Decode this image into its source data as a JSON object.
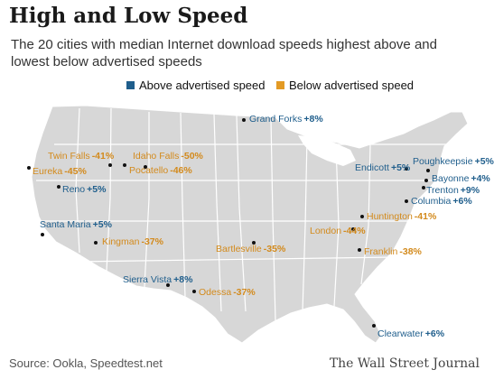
{
  "title": "High and Low Speed",
  "subtitle": "The 20 cities with median Internet download speeds highest above and lowest below advertised speeds",
  "legend": {
    "above_label": "Above advertised speed",
    "below_label": "Below advertised speed",
    "above_color": "#1f5e8c",
    "below_color": "#e39a24"
  },
  "cities": [
    {
      "name": "Grand Forks",
      "value": "+8%",
      "type": "above"
    },
    {
      "name": "Twin Falls",
      "value": "-41%",
      "type": "below"
    },
    {
      "name": "Idaho Falls",
      "value": "-50%",
      "type": "below"
    },
    {
      "name": "Eureka",
      "value": "-45%",
      "type": "below"
    },
    {
      "name": "Pocatello",
      "value": "-46%",
      "type": "below"
    },
    {
      "name": "Reno",
      "value": "+5%",
      "type": "above"
    },
    {
      "name": "Santa Maria",
      "value": "+5%",
      "type": "above"
    },
    {
      "name": "Kingman",
      "value": "-37%",
      "type": "below"
    },
    {
      "name": "Bartlesville",
      "value": "-35%",
      "type": "below"
    },
    {
      "name": "Sierra Vista",
      "value": "+8%",
      "type": "above"
    },
    {
      "name": "Odessa",
      "value": "-37%",
      "type": "below"
    },
    {
      "name": "Endicott",
      "value": "+5%",
      "type": "above"
    },
    {
      "name": "Poughkeepsie",
      "value": "+5%",
      "type": "above"
    },
    {
      "name": "Bayonne",
      "value": "+4%",
      "type": "above"
    },
    {
      "name": "Trenton",
      "value": "+9%",
      "type": "above"
    },
    {
      "name": "Columbia",
      "value": "+6%",
      "type": "above"
    },
    {
      "name": "Huntington",
      "value": "-41%",
      "type": "below"
    },
    {
      "name": "London",
      "value": "-44%",
      "type": "below"
    },
    {
      "name": "Franklin",
      "value": "-38%",
      "type": "below"
    },
    {
      "name": "Clearwater",
      "value": "+6%",
      "type": "above"
    }
  ],
  "source": "Source: Ookla, Speedtest.net",
  "publisher": "The Wall Street Journal"
}
